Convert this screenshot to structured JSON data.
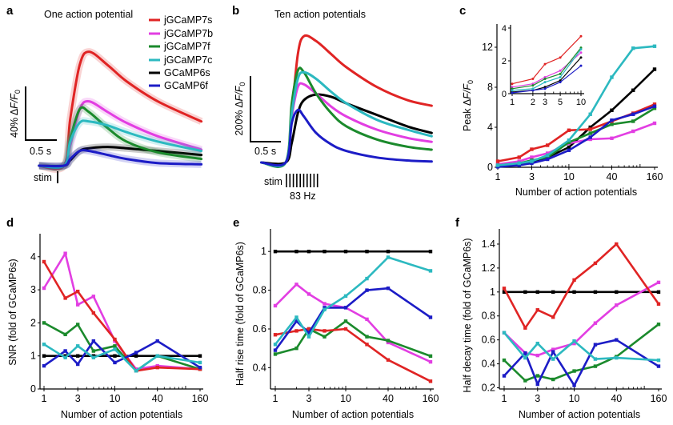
{
  "legend": {
    "entries": [
      {
        "name": "jGCaMP7s",
        "color": "#e02424"
      },
      {
        "name": "jGCaMP7b",
        "color": "#e23ee2"
      },
      {
        "name": "jGCaMP7f",
        "color": "#1b8a2c"
      },
      {
        "name": "jGCaMP7c",
        "color": "#2cb9c0"
      },
      {
        "name": "GCaMP6s",
        "color": "#000000"
      },
      {
        "name": "GCaMP6f",
        "color": "#1c1cc6"
      }
    ]
  },
  "chart_data": [
    {
      "panel": "a",
      "type": "line",
      "title": "One action potential",
      "scale_bar_y": {
        "prefix": "40% Δ",
        "italic": "F/F",
        "sub": "0"
      },
      "scale_bar_x": "0.5 s",
      "stim_label": "stim",
      "x_units": "s",
      "y_units": "% ΔF/F0",
      "t": [
        -0.4,
        0,
        0.1,
        0.25,
        0.4,
        0.7,
        1.0,
        1.5,
        2.2
      ],
      "series": [
        {
          "name": "jGCaMP7s",
          "values": [
            0,
            0,
            35,
            75,
            85,
            75,
            63,
            48,
            33
          ]
        },
        {
          "name": "jGCaMP7b",
          "values": [
            0,
            0,
            15,
            42,
            48,
            40,
            32,
            22,
            12
          ]
        },
        {
          "name": "jGCaMP7f",
          "values": [
            0,
            0,
            20,
            42,
            40,
            28,
            18,
            10,
            5
          ]
        },
        {
          "name": "jGCaMP7c",
          "values": [
            0,
            0,
            18,
            32,
            33,
            30,
            25,
            18,
            11
          ]
        },
        {
          "name": "GCaMP6s",
          "values": [
            0,
            0,
            4,
            11,
            13,
            14,
            13,
            11,
            8
          ]
        },
        {
          "name": "GCaMP6f",
          "values": [
            0,
            0,
            5,
            11,
            11,
            8,
            5,
            2,
            1
          ]
        }
      ]
    },
    {
      "panel": "b",
      "type": "line",
      "title": "Ten action potentials",
      "scale_bar_y": {
        "prefix": "200% Δ",
        "italic": "F/F",
        "sub": "0"
      },
      "scale_bar_x": "0.5 s",
      "stim_label": "stim",
      "stim_rate": "83 Hz",
      "stim_count": 10,
      "x_units": "s",
      "y_units": "% ΔF/F0",
      "t": [
        -0.4,
        0,
        0.1,
        0.2,
        0.3,
        0.5,
        0.75,
        1.0,
        1.5,
        2.0,
        2.4
      ],
      "series": [
        {
          "name": "jGCaMP7s",
          "values": [
            0,
            0,
            150,
            330,
            385,
            370,
            330,
            290,
            230,
            190,
            173
          ]
        },
        {
          "name": "jGCaMP7b",
          "values": [
            0,
            0,
            140,
            230,
            238,
            210,
            170,
            140,
            100,
            75,
            63
          ]
        },
        {
          "name": "jGCaMP7f",
          "values": [
            0,
            0,
            180,
            280,
            275,
            210,
            150,
            110,
            70,
            48,
            39
          ]
        },
        {
          "name": "jGCaMP7c",
          "values": [
            0,
            0,
            150,
            255,
            275,
            255,
            215,
            180,
            130,
            100,
            80
          ]
        },
        {
          "name": "GCaMP6s",
          "values": [
            0,
            0,
            60,
            150,
            190,
            207,
            200,
            180,
            145,
            110,
            90
          ]
        },
        {
          "name": "GCaMP6f",
          "values": [
            0,
            0,
            120,
            160,
            140,
            90,
            55,
            35,
            15,
            6,
            3
          ]
        }
      ]
    },
    {
      "panel": "c",
      "type": "line",
      "x_scale": "log",
      "xlabel": "Number of action potentials",
      "ylabel": {
        "prefix": "Peak Δ",
        "italic": "F/F",
        "sub": "0"
      },
      "xlim": [
        1,
        160
      ],
      "ylim": [
        0,
        14
      ],
      "x_ticks": [
        "1",
        "3",
        "10",
        "40",
        "160"
      ],
      "y_ticks": [
        "0",
        "4",
        "8",
        "12"
      ],
      "x": [
        1,
        2,
        3,
        5,
        10,
        20,
        40,
        80,
        160
      ],
      "series": [
        {
          "name": "jGCaMP7s",
          "values": [
            0.6,
            1.0,
            1.8,
            2.2,
            3.7,
            3.8,
            4.6,
            5.4,
            6.3
          ]
        },
        {
          "name": "jGCaMP7b",
          "values": [
            0.3,
            0.6,
            1.0,
            1.4,
            2.4,
            2.8,
            2.9,
            3.6,
            4.4
          ]
        },
        {
          "name": "jGCaMP7f",
          "values": [
            0.2,
            0.4,
            0.7,
            1.0,
            2.5,
            3.4,
            4.3,
            4.6,
            5.9
          ]
        },
        {
          "name": "jGCaMP7c",
          "values": [
            0.2,
            0.4,
            0.6,
            1.2,
            2.7,
            5.3,
            9.0,
            11.9,
            12.1
          ]
        },
        {
          "name": "GCaMP6s",
          "values": [
            0.1,
            0.3,
            0.5,
            1.0,
            2.0,
            4.0,
            5.7,
            7.7,
            9.8
          ]
        },
        {
          "name": "GCaMP6f",
          "values": [
            0.05,
            0.2,
            0.4,
            0.8,
            1.7,
            3.0,
            4.7,
            5.3,
            6.1
          ]
        }
      ],
      "inset": {
        "x_scale": "log",
        "xlim": [
          1,
          10
        ],
        "ylim": [
          0,
          4
        ],
        "x_ticks": [
          "1",
          "2",
          "3",
          "5",
          "10"
        ],
        "y_ticks": [
          "0",
          "2",
          "4"
        ],
        "x": [
          1,
          2,
          3,
          5,
          10
        ],
        "series": [
          {
            "name": "jGCaMP7s",
            "values": [
              0.6,
              0.9,
              1.8,
              2.2,
              3.5
            ]
          },
          {
            "name": "jGCaMP7b",
            "values": [
              0.4,
              0.6,
              1.0,
              1.4,
              2.5
            ]
          },
          {
            "name": "jGCaMP7f",
            "values": [
              0.3,
              0.5,
              0.9,
              1.2,
              2.8
            ]
          },
          {
            "name": "jGCaMP7c",
            "values": [
              0.2,
              0.3,
              0.7,
              1.0,
              2.7
            ]
          },
          {
            "name": "GCaMP6s",
            "values": [
              0.1,
              0.2,
              0.4,
              0.8,
              2.2
            ]
          },
          {
            "name": "GCaMP6f",
            "values": [
              0.05,
              0.2,
              0.3,
              0.7,
              1.7
            ]
          }
        ]
      }
    },
    {
      "panel": "d",
      "type": "line",
      "x_scale": "log",
      "xlabel": "Number of action potentials",
      "ylabel": "SNR (fold of GCaMP6s)",
      "xlim": [
        1,
        160
      ],
      "ylim": [
        0,
        4.6
      ],
      "x_ticks": [
        "1",
        "3",
        "10",
        "40",
        "160"
      ],
      "y_ticks": [
        "0",
        "1",
        "2",
        "3",
        "4"
      ],
      "x": [
        1,
        2,
        3,
        5,
        10,
        20,
        40,
        160
      ],
      "series": [
        {
          "name": "jGCaMP7s",
          "values": [
            3.85,
            2.75,
            2.95,
            2.3,
            1.5,
            0.55,
            0.65,
            0.6
          ]
        },
        {
          "name": "jGCaMP7b",
          "values": [
            3.05,
            4.1,
            2.55,
            2.8,
            1.45,
            0.6,
            0.7,
            0.6
          ]
        },
        {
          "name": "jGCaMP7f",
          "values": [
            2.0,
            1.65,
            1.95,
            1.15,
            1.3,
            0.55,
            1.0,
            0.6
          ]
        },
        {
          "name": "jGCaMP7c",
          "values": [
            1.35,
            0.95,
            1.3,
            0.95,
            1.2,
            0.55,
            1.0,
            0.8
          ]
        },
        {
          "name": "GCaMP6s",
          "values": [
            1,
            1,
            1,
            1,
            1,
            1,
            1,
            1
          ]
        },
        {
          "name": "GCaMP6f",
          "values": [
            0.7,
            1.15,
            0.75,
            1.45,
            0.8,
            1.1,
            1.45,
            0.65
          ]
        }
      ]
    },
    {
      "panel": "e",
      "type": "line",
      "x_scale": "log",
      "xlabel": "Number of action potentials",
      "ylabel": "Half rise time (fold of GCaMP6s)",
      "xlim": [
        1,
        160
      ],
      "ylim": [
        0.29,
        1.1
      ],
      "x_ticks": [
        "1",
        "3",
        "10",
        "40",
        "160"
      ],
      "y_ticks": [
        "0.4",
        "0.6",
        "0.8",
        "1"
      ],
      "x": [
        1,
        2,
        3,
        5,
        10,
        20,
        40,
        160
      ],
      "series": [
        {
          "name": "jGCaMP7s",
          "values": [
            0.57,
            0.59,
            0.6,
            0.59,
            0.6,
            0.52,
            0.44,
            0.33
          ]
        },
        {
          "name": "jGCaMP7b",
          "values": [
            0.72,
            0.83,
            0.78,
            0.73,
            0.71,
            0.65,
            0.53,
            0.43
          ]
        },
        {
          "name": "jGCaMP7f",
          "values": [
            0.47,
            0.5,
            0.6,
            0.56,
            0.64,
            0.56,
            0.54,
            0.46
          ]
        },
        {
          "name": "jGCaMP7c",
          "values": [
            0.52,
            0.66,
            0.56,
            0.7,
            0.77,
            0.86,
            0.97,
            0.9
          ]
        },
        {
          "name": "GCaMP6s",
          "values": [
            1,
            1,
            1,
            1,
            1,
            1,
            1,
            1
          ]
        },
        {
          "name": "GCaMP6f",
          "values": [
            0.49,
            0.64,
            0.58,
            0.71,
            0.71,
            0.8,
            0.81,
            0.66
          ]
        }
      ]
    },
    {
      "panel": "f",
      "type": "line",
      "x_scale": "log",
      "xlabel": "Number of action potentials",
      "ylabel": "Half decay time (fold of GCaMP6s)",
      "xlim": [
        1,
        160
      ],
      "ylim": [
        0.19,
        1.5
      ],
      "x_ticks": [
        "1",
        "3",
        "10",
        "40",
        "160"
      ],
      "y_ticks": [
        "0.2",
        "0.4",
        "0.6",
        "0.8",
        "1",
        "1.2",
        "1.4"
      ],
      "x": [
        1,
        2,
        3,
        5,
        10,
        20,
        40,
        160
      ],
      "series": [
        {
          "name": "jGCaMP7s",
          "values": [
            1.03,
            0.7,
            0.85,
            0.79,
            1.1,
            1.24,
            1.4,
            0.9
          ]
        },
        {
          "name": "jGCaMP7b",
          "values": [
            0.66,
            0.49,
            0.47,
            0.52,
            0.57,
            0.74,
            0.89,
            1.08
          ]
        },
        {
          "name": "jGCaMP7f",
          "values": [
            0.43,
            0.26,
            0.3,
            0.27,
            0.34,
            0.38,
            0.46,
            0.73
          ]
        },
        {
          "name": "jGCaMP7c",
          "values": [
            0.66,
            0.45,
            0.57,
            0.44,
            0.59,
            0.44,
            0.45,
            0.43
          ]
        },
        {
          "name": "GCaMP6s",
          "values": [
            1,
            1,
            1,
            1,
            1,
            1,
            1,
            1
          ]
        },
        {
          "name": "GCaMP6f",
          "values": [
            0.3,
            0.49,
            0.23,
            0.5,
            0.22,
            0.56,
            0.6,
            0.38
          ]
        }
      ]
    }
  ]
}
